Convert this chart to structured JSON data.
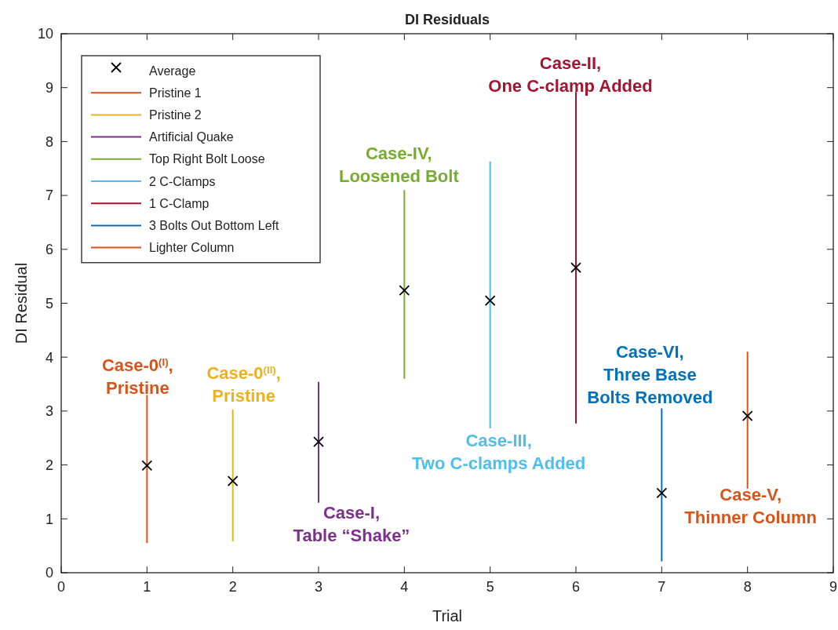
{
  "chart_data": {
    "type": "scatter",
    "title": "DI Residuals",
    "xlabel": "Trial",
    "ylabel": "DI Residual",
    "xlim": [
      0,
      9
    ],
    "xticks": [
      0,
      1,
      2,
      3,
      4,
      5,
      6,
      7,
      8,
      9
    ],
    "ylim": [
      0,
      10
    ],
    "yticks": [
      0,
      1,
      2,
      3,
      4,
      5,
      6,
      7,
      8,
      9,
      10
    ],
    "grid": false,
    "legend": "top left",
    "marker": "cross",
    "series": [
      {
        "name": "Average",
        "type": "scatter",
        "color": "#000000",
        "x": [
          1,
          2,
          3,
          4,
          5,
          6,
          7,
          8
        ],
        "values": [
          1.99,
          1.7,
          2.43,
          5.24,
          5.05,
          5.66,
          1.48,
          2.91
        ]
      },
      {
        "name": "Pristine 1",
        "type": "line",
        "marker": "none",
        "color": "#d95319",
        "x": [
          1,
          1
        ],
        "values": [
          0.55,
          3.3
        ]
      },
      {
        "name": "Pristine 2",
        "type": "line",
        "marker": "none",
        "color": "#edb120",
        "x": [
          2,
          2
        ],
        "values": [
          0.58,
          3.03
        ]
      },
      {
        "name": "Artificial Quake",
        "type": "line",
        "marker": "none",
        "color": "#7e2f8e",
        "x": [
          3,
          3
        ],
        "values": [
          1.3,
          3.54
        ]
      },
      {
        "name": "Top Right Bolt Loose",
        "type": "line",
        "marker": "none",
        "color": "#77ac30",
        "x": [
          4,
          4
        ],
        "values": [
          3.6,
          7.1
        ]
      },
      {
        "name": "2 C-Clamps",
        "type": "line",
        "marker": "none",
        "color": "#4dbeee",
        "x": [
          5,
          5
        ],
        "values": [
          2.68,
          7.63
        ]
      },
      {
        "name": "1 C-Clamp",
        "type": "line",
        "marker": "none",
        "color": "#a2142f",
        "x": [
          6,
          6
        ],
        "values": [
          2.77,
          8.92
        ]
      },
      {
        "name": "3 Bolts Out Bottom Left",
        "type": "line",
        "marker": "none",
        "color": "#0072bd",
        "x": [
          7,
          7
        ],
        "values": [
          0.21,
          3.05
        ]
      },
      {
        "name": "Lighter Column",
        "type": "line",
        "marker": "none",
        "color": "#d95319",
        "x": [
          8,
          8
        ],
        "values": [
          1.56,
          4.1
        ]
      }
    ],
    "annotations": [
      "Case-0$^{(I)}$,\nPristine",
      "Case-0$^{(II)}$,\nPristine",
      "Case-I,\nTable “Shake”",
      "Case-IV,\nLoosened Bolt",
      "Case-III,\nTwo C-clamps Added",
      "Case-II,\nOne C-clamp Added",
      "Case-VI,\nThree Base\nBolts Removed",
      "Case-V,\nThinner Column"
    ]
  }
}
